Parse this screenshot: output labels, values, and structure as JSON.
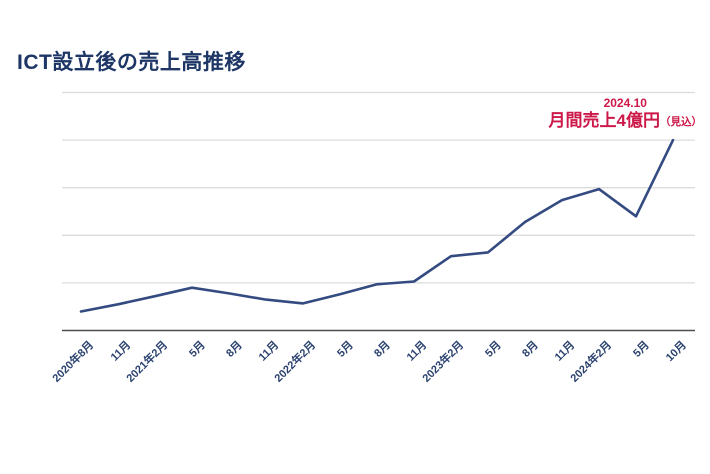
{
  "title": "ICT設立後の売上高推移",
  "annotation": {
    "date": "2024.10",
    "label": "月間売上4億円",
    "suffix": "（見込）"
  },
  "colors": {
    "title": "#1d3666",
    "line": "#344b82",
    "annotation": "#cc1949",
    "tick_label": "#2b4270",
    "gridline": "#dcdcdc",
    "axis": "#4f4f4f",
    "background": "#ffffff"
  },
  "chart_data": {
    "type": "line",
    "title": "ICT設立後の売上高推移",
    "categories": [
      "2020年8月",
      "11月",
      "2021年2月",
      "5月",
      "8月",
      "11月",
      "2022年2月",
      "5月",
      "8月",
      "11月",
      "2023年2月",
      "5月",
      "8月",
      "11月",
      "2024年2月",
      "5月",
      "10月"
    ],
    "values": [
      0.4,
      0.55,
      0.72,
      0.9,
      0.78,
      0.65,
      0.57,
      0.76,
      0.97,
      1.03,
      1.56,
      1.64,
      2.28,
      2.74,
      2.97,
      2.4,
      4.0
    ],
    "unit": "億円",
    "xlabel": "",
    "ylabel": "",
    "ylim": [
      0,
      5
    ],
    "grid_step": 1,
    "grid": true,
    "y_axis_labels_visible": false,
    "legend": false,
    "annotation_point": {
      "category": "10月",
      "value": 4.0,
      "text": "2024.10 月間売上4億円（見込）"
    }
  }
}
